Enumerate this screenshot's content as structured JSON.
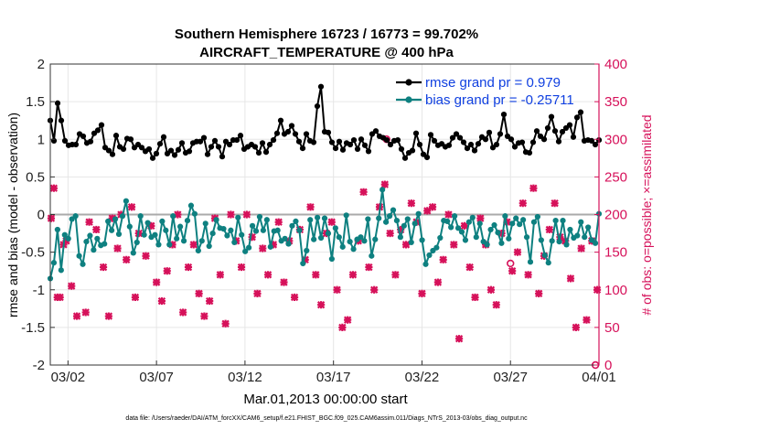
{
  "chart_data": {
    "type": "line",
    "title": "Southern Hemisphere 16723 / 16773 = 99.702%",
    "subtitle": "AIRCRAFT_TEMPERATURE @ 400 hPa",
    "xlabel": "Mar.01,2013 00:00:00 start",
    "ylabel": "rmse and bias (model - observation)",
    "ylabel_right": "# of obs: o=possible; ×=assimilated",
    "xlim": [
      0,
      31
    ],
    "ylim": [
      -2,
      2
    ],
    "ylim_right": [
      0,
      400
    ],
    "x_ticks": [
      1,
      6,
      11,
      16,
      21,
      26,
      31
    ],
    "x_tick_labels": [
      "03/02",
      "03/07",
      "03/12",
      "03/17",
      "03/22",
      "03/27",
      "04/01"
    ],
    "y_ticks": [
      -2,
      -1.5,
      -1,
      -0.5,
      0,
      0.5,
      1,
      1.5,
      2
    ],
    "y_tick_labels": [
      "-2",
      "-1.5",
      "-1",
      "-0.5",
      "0",
      "0.5",
      "1",
      "1.5",
      "2"
    ],
    "y_ticks_right": [
      0,
      50,
      100,
      150,
      200,
      250,
      300,
      350,
      400
    ],
    "y_tick_labels_right": [
      "0",
      "50",
      "100",
      "150",
      "200",
      "250",
      "300",
      "350",
      "400"
    ],
    "grid": true,
    "legend_position": "top-right",
    "colors": {
      "rmse": "#000000",
      "bias": "#0e8080",
      "obs": "#d6115a",
      "zero_line": "#aaaaaa",
      "legend_text": "#1040e0"
    },
    "series": [
      {
        "name": "rmse grand pr = 0.979",
        "role": "rmse",
        "values": [
          1.25,
          0.98,
          1.48,
          1.25,
          0.98,
          0.92,
          0.93,
          0.93,
          1.07,
          1.04,
          0.95,
          0.97,
          1.08,
          1.12,
          1.19,
          0.89,
          0.85,
          0.8,
          1.05,
          0.9,
          0.87,
          1.01,
          1.0,
          0.89,
          0.93,
          0.89,
          0.84,
          0.87,
          0.75,
          0.81,
          0.94,
          1.03,
          0.81,
          0.85,
          0.79,
          0.86,
          0.95,
          0.82,
          0.84,
          0.95,
          0.97,
          0.97,
          1.02,
          0.8,
          0.9,
          0.98,
          0.9,
          0.77,
          0.97,
          0.93,
          0.99,
          0.99,
          1.05,
          0.87,
          0.9,
          0.93,
          0.9,
          0.82,
          0.95,
          0.83,
          0.93,
          0.99,
          1.08,
          1.25,
          1.07,
          1.1,
          1.18,
          1.07,
          0.97,
          0.88,
          1.07,
          0.98,
          0.96,
          1.44,
          1.7,
          1.1,
          1.09,
          0.96,
          0.88,
          0.97,
          0.86,
          0.95,
          0.93,
          0.99,
          0.87,
          1.0,
          0.92,
          0.84,
          1.07,
          1.11,
          1.04,
          1.02,
          0.99,
          0.93,
          0.98,
          0.99,
          0.87,
          0.75,
          0.82,
          0.85,
          1.08,
          0.93,
          0.8,
          0.76,
          1.06,
          0.98,
          0.92,
          0.94,
          0.9,
          0.92,
          1.02,
          1.07,
          1.02,
          0.96,
          0.88,
          0.93,
          0.85,
          0.94,
          1.03,
          1.0,
          1.09,
          0.89,
          0.93,
          1.07,
          1.33,
          1.04,
          1.0,
          0.9,
          0.95,
          0.96,
          0.83,
          0.82,
          0.96,
          1.11,
          1.04,
          1.0,
          1.15,
          1.3,
          1.11,
          0.97,
          1.1,
          1.15,
          1.19,
          1.03,
          1.29,
          1.36,
          0.98,
          0.99,
          0.98,
          0.93,
          0.99
        ]
      },
      {
        "name": "bias grand pr = -0.25711",
        "role": "bias",
        "values": [
          -0.85,
          -0.64,
          -0.2,
          -0.74,
          -0.27,
          -0.32,
          -0.06,
          -0.02,
          -0.55,
          -0.66,
          -0.36,
          -0.28,
          -0.47,
          -0.32,
          -0.41,
          -0.39,
          -0.09,
          -0.21,
          -0.06,
          -0.26,
          -0.02,
          0.18,
          -0.16,
          -0.51,
          -0.37,
          -0.02,
          -0.27,
          -0.11,
          -0.3,
          -0.27,
          -0.4,
          -0.09,
          -0.21,
          -0.4,
          -0.02,
          -0.32,
          -0.16,
          -0.35,
          -0.08,
          0.12,
          0.01,
          -0.48,
          -0.35,
          -0.12,
          -0.42,
          -0.25,
          -0.07,
          -0.18,
          -0.19,
          -0.28,
          -0.21,
          -0.37,
          -0.04,
          -0.27,
          -0.49,
          -0.44,
          -0.15,
          -0.22,
          -0.03,
          -0.21,
          -0.07,
          -0.43,
          -0.22,
          -0.21,
          -0.35,
          -0.32,
          -0.39,
          -0.15,
          -0.09,
          -0.21,
          -0.65,
          -0.48,
          -0.07,
          -0.33,
          -0.04,
          -0.31,
          -0.05,
          -0.25,
          -0.59,
          -0.18,
          -0.3,
          -0.43,
          -0.01,
          -0.36,
          -0.46,
          -0.33,
          -0.3,
          -0.35,
          -0.06,
          -0.55,
          -0.33,
          -0.05,
          0.33,
          -0.1,
          -0.02,
          0.06,
          -0.08,
          -0.3,
          -0.15,
          -0.06,
          -0.37,
          -0.12,
          0.01,
          -0.34,
          -0.66,
          -0.54,
          -0.48,
          -0.44,
          -0.31,
          -0.08,
          -0.09,
          -0.17,
          -0.02,
          -0.18,
          -0.23,
          -0.34,
          -0.1,
          -0.04,
          -0.3,
          -0.12,
          -0.36,
          -0.4,
          -0.2,
          -0.14,
          -0.24,
          -0.38,
          -0.02,
          -0.32,
          -0.12,
          -0.05,
          -0.13,
          -0.07,
          -0.3,
          -0.63,
          -0.1,
          -0.03,
          -0.34,
          -0.54,
          -0.64,
          -0.35,
          -0.08,
          -0.36,
          -0.08,
          -0.4,
          -0.2,
          -0.31,
          -0.28,
          -0.1,
          -0.3,
          -0.17,
          -0.34,
          -0.38,
          0.01
        ]
      }
    ],
    "obs_assimilated": {
      "name": "assimilated",
      "x": [
        0.05,
        0.2,
        0.4,
        0.55,
        0.75,
        0.9,
        1.2,
        1.5,
        2.0,
        2.2,
        2.6,
        3.0,
        3.3,
        3.5,
        3.8,
        4.0,
        4.3,
        4.6,
        4.8,
        5.0,
        5.4,
        5.7,
        6.0,
        6.3,
        6.6,
        6.9,
        7.2,
        7.5,
        7.8,
        8.1,
        8.4,
        8.7,
        9.0,
        9.3,
        9.6,
        9.9,
        10.2,
        10.5,
        10.8,
        11.1,
        11.4,
        11.7,
        12.0,
        12.3,
        12.6,
        12.9,
        13.2,
        13.5,
        13.8,
        14.1,
        14.4,
        14.7,
        15.0,
        15.3,
        15.6,
        15.9,
        16.2,
        16.5,
        16.8,
        17.1,
        17.4,
        17.7,
        18.0,
        18.3,
        18.6,
        18.9,
        19.2,
        19.5,
        19.8,
        20.1,
        20.4,
        20.7,
        21.0,
        21.3,
        21.6,
        21.9,
        22.2,
        22.5,
        22.8,
        23.1,
        23.4,
        23.7,
        24.0,
        24.3,
        24.6,
        24.9,
        25.2,
        25.5,
        25.8,
        26.1,
        26.4,
        26.7,
        27.0,
        27.3,
        27.6,
        27.9,
        28.2,
        28.5,
        28.8,
        29.1,
        29.4,
        29.7,
        30.0,
        30.3,
        30.6,
        30.9
      ],
      "y": [
        195,
        235,
        90,
        90,
        160,
        165,
        105,
        65,
        70,
        190,
        180,
        130,
        65,
        195,
        155,
        200,
        140,
        210,
        90,
        175,
        145,
        185,
        110,
        85,
        125,
        160,
        200,
        70,
        130,
        160,
        95,
        65,
        85,
        195,
        120,
        55,
        200,
        165,
        130,
        200,
        170,
        95,
        155,
        120,
        160,
        190,
        110,
        165,
        90,
        180,
        140,
        210,
        120,
        80,
        175,
        190,
        100,
        50,
        60,
        120,
        165,
        230,
        130,
        100,
        210,
        240,
        175,
        120,
        180,
        160,
        215,
        190,
        95,
        205,
        210,
        110,
        140,
        200,
        160,
        35,
        185,
        130,
        90,
        195,
        160,
        100,
        80,
        175,
        190,
        125,
        150,
        215,
        120,
        235,
        95,
        145,
        180,
        215,
        170,
        165,
        115,
        50,
        155,
        60,
        165,
        100
      ]
    },
    "obs_possible": {
      "name": "possible",
      "x": [
        19.0,
        26.0,
        30.8
      ],
      "y": [
        300,
        135,
        0
      ]
    },
    "footer": "data file: /Users/raeder/DAI/ATM_forcXX/CAM6_setup/f.e21.FHIST_BGC.f09_025.CAM6assim.011/Diags_NTrS_2013-03/obs_diag_output.nc"
  }
}
